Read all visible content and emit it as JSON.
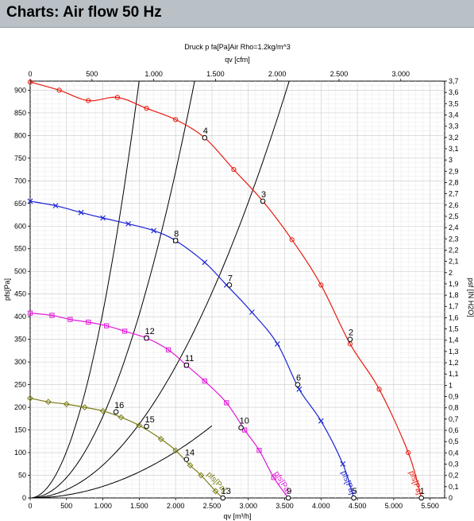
{
  "page": {
    "title": "Charts: Air flow 50 Hz"
  },
  "chart_data": {
    "type": "line",
    "header_note": "Druck p fa[Pa]Air Rho=1.2kg/m^3",
    "top_axis": {
      "label": "qv [cfm]",
      "ticks": [
        0,
        500,
        "1.000",
        "1.500",
        "2.000",
        "2.500",
        "3.000"
      ],
      "tick_values": [
        0,
        500,
        1000,
        1500,
        2000,
        2500,
        3000
      ]
    },
    "x_axis": {
      "label": "qv [m³/h]",
      "range": [
        0,
        5700
      ],
      "ticks": [
        "0",
        "500",
        "1.000",
        "1.500",
        "2.000",
        "2.500",
        "3.000",
        "3.500",
        "4.000",
        "4.500",
        "5.000",
        "5.500"
      ],
      "tick_values": [
        0,
        500,
        1000,
        1500,
        2000,
        2500,
        3000,
        3500,
        4000,
        4500,
        5000,
        5500
      ]
    },
    "y_axis": {
      "label": "pfs[Pa]",
      "range": [
        0,
        920
      ],
      "ticks": [
        0,
        50,
        100,
        150,
        200,
        250,
        300,
        350,
        400,
        450,
        500,
        550,
        600,
        650,
        700,
        750,
        800,
        850,
        900
      ]
    },
    "y2_axis": {
      "label": "psf [IN H2O]",
      "range": [
        0,
        3.7
      ],
      "ticks": [
        "0",
        "0,1",
        "0,2",
        "0,3",
        "0,4",
        "0,5",
        "0,6",
        "0,7",
        "0,8",
        "0,9",
        "1",
        "1,1",
        "1,2",
        "1,3",
        "1,4",
        "1,5",
        "1,6",
        "1,7",
        "1,8",
        "1,9",
        "2",
        "2,1",
        "2,2",
        "2,3",
        "2,4",
        "2,5",
        "2,6",
        "2,7",
        "2,8",
        "2,9",
        "3",
        "3,1",
        "3,2",
        "3,3",
        "3,4",
        "3,5",
        "3,6",
        "3,7"
      ],
      "tick_values": [
        0,
        0.1,
        0.2,
        0.3,
        0.4,
        0.5,
        0.6,
        0.7,
        0.8,
        0.9,
        1,
        1.1,
        1.2,
        1.3,
        1.4,
        1.5,
        1.6,
        1.7,
        1.8,
        1.9,
        2,
        2.1,
        2.2,
        2.3,
        2.4,
        2.5,
        2.6,
        2.7,
        2.8,
        2.9,
        3,
        3.1,
        3.2,
        3.3,
        3.4,
        3.5,
        3.6,
        3.7
      ]
    },
    "grid": true,
    "fan_curves": [
      {
        "name": "pfs[Pa]",
        "color": "#e81a0e",
        "marker": "circle",
        "x": [
          0,
          400,
          800,
          1200,
          1600,
          2000,
          2400,
          2800,
          3200,
          3600,
          4000,
          4400,
          4800,
          5200,
          5380
        ],
        "y": [
          918,
          900,
          877,
          884,
          860,
          835,
          795,
          725,
          655,
          570,
          470,
          340,
          240,
          100,
          0
        ]
      },
      {
        "name": "pfs[Pa]",
        "color": "#1a23d6",
        "marker": "x",
        "x": [
          0,
          350,
          700,
          1000,
          1350,
          1700,
          2000,
          2400,
          2700,
          3050,
          3400,
          3700,
          4000,
          4300,
          4450
        ],
        "y": [
          655,
          645,
          630,
          618,
          605,
          590,
          568,
          520,
          470,
          410,
          340,
          240,
          170,
          75,
          0
        ]
      },
      {
        "name": "pfs[Pa]",
        "color": "#e01ad8",
        "marker": "square",
        "x": [
          0,
          300,
          550,
          800,
          1050,
          1300,
          1600,
          1900,
          2150,
          2400,
          2700,
          2950,
          3150,
          3350,
          3550
        ],
        "y": [
          408,
          403,
          394,
          388,
          380,
          368,
          353,
          327,
          293,
          258,
          210,
          150,
          105,
          45,
          0
        ]
      },
      {
        "name": "pfs[Pa]",
        "color": "#7a7c12",
        "marker": "diamond",
        "x": [
          0,
          250,
          500,
          750,
          1000,
          1250,
          1500,
          1800,
          2000,
          2200,
          2350,
          2550,
          2650
        ],
        "y": [
          220,
          212,
          207,
          200,
          192,
          178,
          160,
          130,
          105,
          72,
          50,
          15,
          0
        ]
      }
    ],
    "system_curves": [
      {
        "k": 2.55e-05,
        "x_end": 2500
      },
      {
        "k": 7.25e-05,
        "x_end": 3700
      },
      {
        "k": 0.00018,
        "x_end": 4600
      },
      {
        "k": 0.00041,
        "x_end": 5600
      }
    ],
    "operating_points": [
      {
        "label": "1",
        "x": 5380,
        "y": 0
      },
      {
        "label": "2",
        "x": 4400,
        "y": 350
      },
      {
        "label": "3",
        "x": 3200,
        "y": 655
      },
      {
        "label": "4",
        "x": 2400,
        "y": 795
      },
      {
        "label": "5",
        "x": 4450,
        "y": 0
      },
      {
        "label": "6",
        "x": 3680,
        "y": 250
      },
      {
        "label": "7",
        "x": 2740,
        "y": 470
      },
      {
        "label": "8",
        "x": 2000,
        "y": 568
      },
      {
        "label": "9",
        "x": 3550,
        "y": 0
      },
      {
        "label": "10",
        "x": 2900,
        "y": 155
      },
      {
        "label": "11",
        "x": 2150,
        "y": 293
      },
      {
        "label": "12",
        "x": 1600,
        "y": 353
      },
      {
        "label": "13",
        "x": 2650,
        "y": 0
      },
      {
        "label": "14",
        "x": 2150,
        "y": 85
      },
      {
        "label": "15",
        "x": 1600,
        "y": 158
      },
      {
        "label": "16",
        "x": 1180,
        "y": 190
      }
    ]
  }
}
